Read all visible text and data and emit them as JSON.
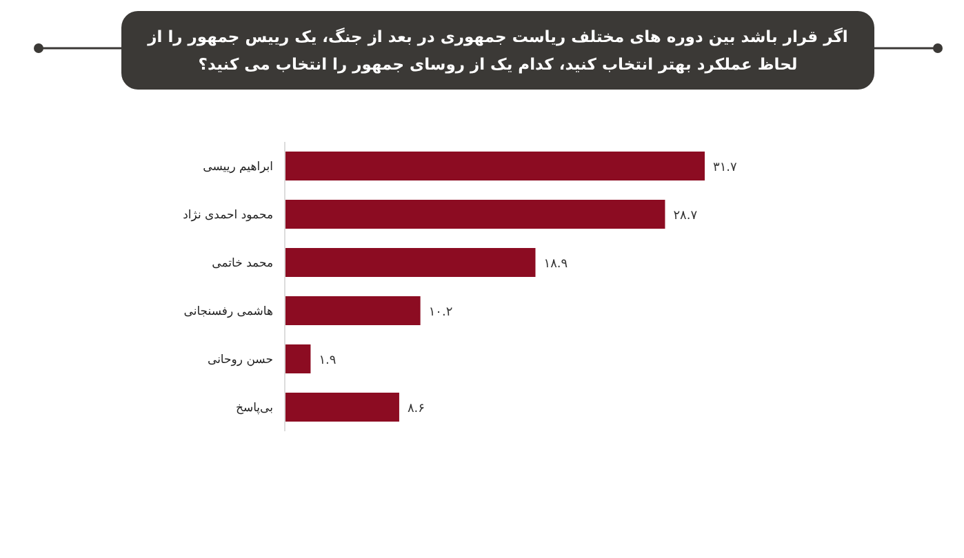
{
  "chart_data": {
    "type": "bar",
    "orientation": "horizontal",
    "title": "اگر قرار باشد بین دوره های مختلف ریاست جمهوری در بعد از جنگ، یک رییس جمهور را از\nلحاظ عملکرد بهتر انتخاب کنید، کدام یک از روسای جمهور را انتخاب می کنید؟",
    "categories": [
      "ابراهیم رییسی",
      "محمود احمدی نژاد",
      "محمد خاتمی",
      "هاشمی رفسنجانی",
      "حسن روحانی",
      "بی‌پاسخ"
    ],
    "values": [
      31.7,
      28.7,
      18.9,
      10.2,
      1.9,
      8.6
    ],
    "value_labels": [
      "۳۱.۷",
      "۲۸.۷",
      "۱۸.۹",
      "۱۰.۲",
      "۱.۹",
      "۸.۶"
    ],
    "color": "#8c0c22"
  }
}
